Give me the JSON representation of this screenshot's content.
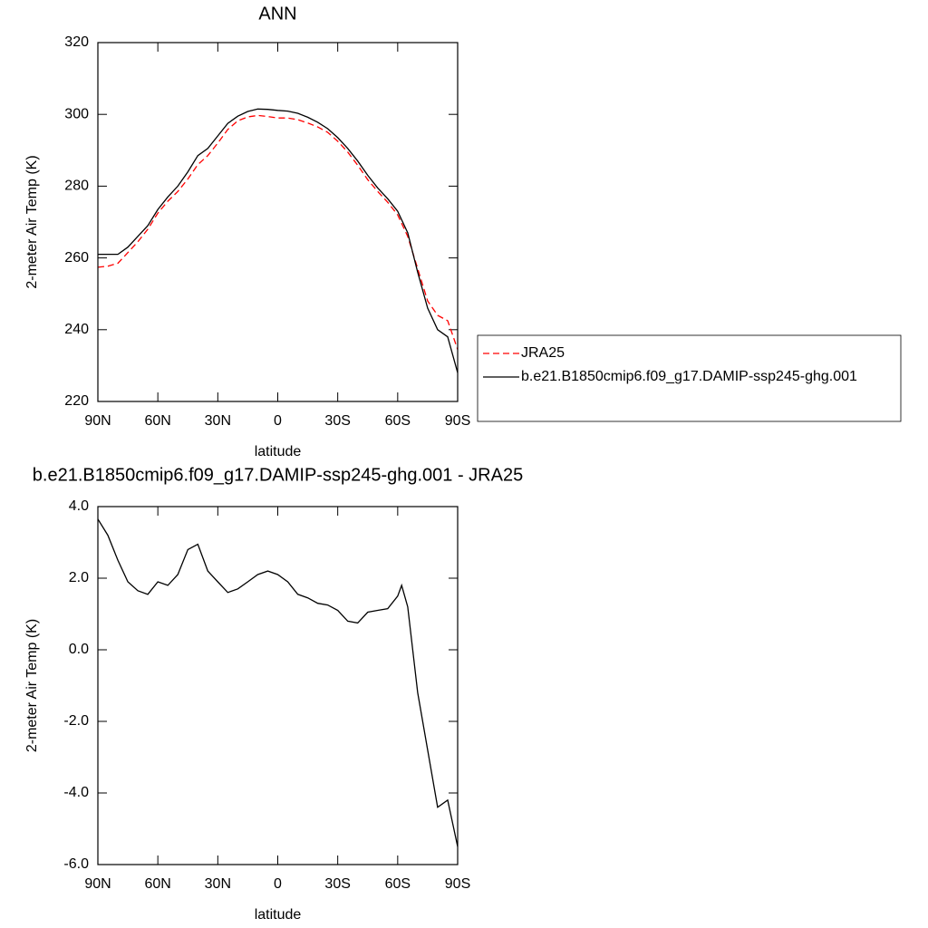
{
  "chart_data": [
    {
      "type": "line",
      "title": "ANN",
      "xlabel": "latitude",
      "ylabel": "2-meter Air Temp (K)",
      "x": [
        90,
        85,
        80,
        75,
        70,
        65,
        60,
        55,
        50,
        45,
        40,
        35,
        30,
        25,
        20,
        15,
        10,
        5,
        0,
        -5,
        -10,
        -15,
        -20,
        -25,
        -30,
        -35,
        -40,
        -45,
        -50,
        -55,
        -60,
        -65,
        -70,
        -75,
        -80,
        -85,
        -90
      ],
      "xlim": [
        90,
        -90
      ],
      "xticks": [
        {
          "value": 90,
          "label": "90N"
        },
        {
          "value": 60,
          "label": "60N"
        },
        {
          "value": 30,
          "label": "30N"
        },
        0,
        {
          "value": -30,
          "label": "30S"
        },
        {
          "value": -60,
          "label": "60S"
        },
        {
          "value": -90,
          "label": "90S"
        }
      ],
      "ylim": [
        220,
        320
      ],
      "yticks": [
        220,
        240,
        260,
        280,
        300,
        320
      ],
      "legend": "right",
      "series": [
        {
          "name": "JRA25",
          "color": "#ff0000",
          "linestyle": "dashed",
          "values": [
            257.4,
            257.7,
            258.5,
            261.5,
            264.5,
            268,
            272.5,
            275.8,
            278.5,
            282,
            286,
            288.5,
            292,
            295.8,
            298.2,
            299.3,
            299.7,
            299.4,
            299.0,
            299.0,
            298.5,
            297.6,
            296.5,
            295,
            292.5,
            289.5,
            285.8,
            281.8,
            278.5,
            275.5,
            272,
            266,
            257,
            248,
            244,
            242.5,
            234.5
          ]
        },
        {
          "name": "b.e21.B1850cmip6.f09_g17.DAMIP-ssp245-ghg.001",
          "color": "#000000",
          "linestyle": "solid",
          "values": [
            261,
            261,
            261,
            263,
            266,
            269,
            273.5,
            277,
            280,
            284,
            288.5,
            290.5,
            294,
            297.5,
            299.5,
            300.8,
            301.5,
            301.4,
            301.1,
            300.9,
            300.3,
            299.2,
            297.8,
            296,
            293.5,
            290.5,
            287,
            283,
            279.5,
            276.5,
            273,
            267,
            256,
            246,
            240,
            238,
            228
          ]
        }
      ]
    },
    {
      "type": "line",
      "title": "b.e21.B1850cmip6.f09_g17.DAMIP-ssp245-ghg.001 - JRA25",
      "xlabel": "latitude",
      "ylabel": "2-meter Air Temp (K)",
      "x": [
        90,
        85,
        80,
        75,
        70,
        65,
        60,
        55,
        50,
        45,
        40,
        35,
        30,
        25,
        20,
        15,
        10,
        5,
        0,
        -5,
        -10,
        -15,
        -20,
        -25,
        -30,
        -35,
        -40,
        -45,
        -50,
        -55,
        -60,
        -62,
        -65,
        -70,
        -75,
        -80,
        -85,
        -90
      ],
      "xlim": [
        90,
        -90
      ],
      "xticks": [
        {
          "value": 90,
          "label": "90N"
        },
        {
          "value": 60,
          "label": "60N"
        },
        {
          "value": 30,
          "label": "30N"
        },
        0,
        {
          "value": -30,
          "label": "30S"
        },
        {
          "value": -60,
          "label": "60S"
        },
        {
          "value": -90,
          "label": "90S"
        }
      ],
      "ylim": [
        -6,
        4
      ],
      "yticks": [
        {
          "value": -6,
          "label": "-6.0"
        },
        {
          "value": -4,
          "label": "-4.0"
        },
        {
          "value": -2,
          "label": "-2.0"
        },
        {
          "value": 0,
          "label": "0.0"
        },
        {
          "value": 2,
          "label": "2.0"
        },
        {
          "value": 4,
          "label": "4.0"
        }
      ],
      "series": [
        {
          "color": "#000000",
          "linestyle": "solid",
          "values": [
            3.65,
            3.2,
            2.5,
            1.9,
            1.65,
            1.55,
            1.9,
            1.8,
            2.1,
            2.8,
            2.95,
            2.2,
            1.9,
            1.6,
            1.7,
            1.9,
            2.1,
            2.2,
            2.1,
            1.9,
            1.55,
            1.45,
            1.3,
            1.25,
            1.1,
            0.8,
            0.75,
            1.05,
            1.1,
            1.15,
            1.5,
            1.8,
            1.2,
            -1.2,
            -2.8,
            -4.4,
            -4.2,
            -5.5
          ]
        }
      ]
    }
  ]
}
